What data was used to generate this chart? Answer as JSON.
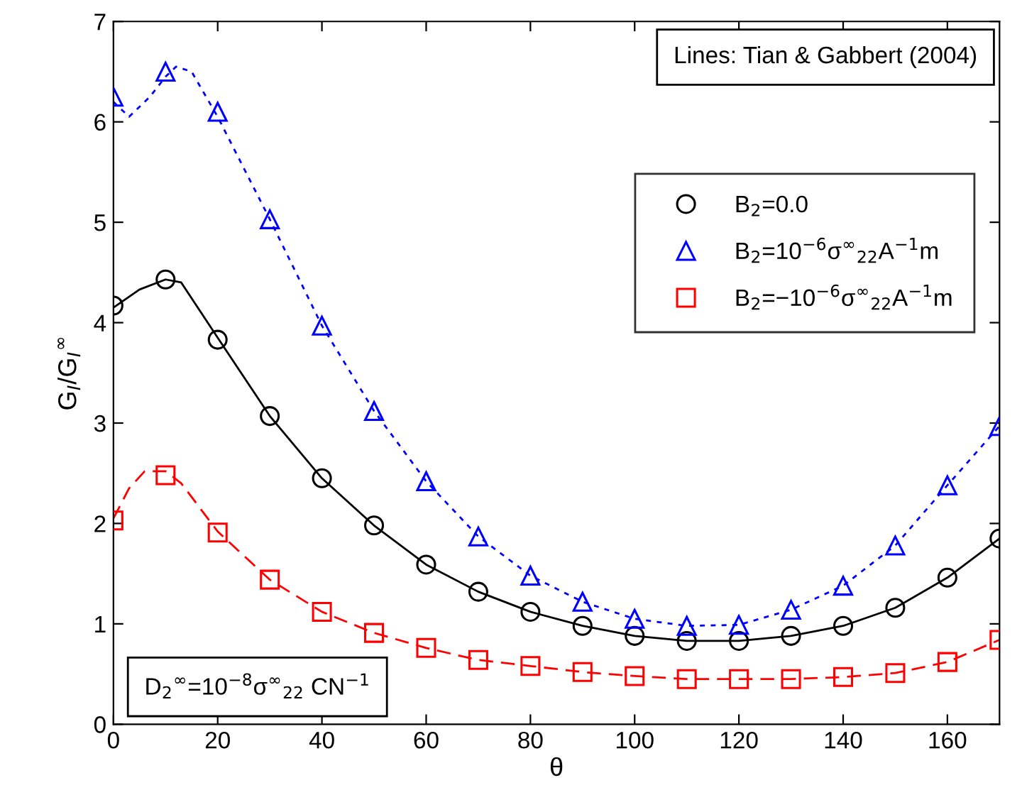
{
  "chart_data": {
    "type": "line",
    "xlabel": "θ",
    "ylabel": "G$_{I}$/G$_{I}$$^{∞}$",
    "x": [
      0,
      10,
      20,
      30,
      40,
      50,
      60,
      70,
      80,
      90,
      100,
      110,
      120,
      130,
      140,
      150,
      160,
      170
    ],
    "series": [
      {
        "name": "B$_{2}$=0.0",
        "type": "scatter",
        "marker": "circle",
        "color": "#000000",
        "values": [
          4.17,
          4.43,
          3.83,
          3.07,
          2.45,
          1.98,
          1.59,
          1.32,
          1.12,
          0.98,
          0.88,
          0.83,
          0.83,
          0.88,
          0.98,
          1.16,
          1.46,
          1.85
        ]
      },
      {
        "name": "B$_{2}$=10$^{−6}$σ$^{∞}$$_{22}$A$^{−1}$m",
        "type": "scatter",
        "marker": "triangle",
        "color": "#0000ff",
        "values": [
          6.25,
          6.5,
          6.1,
          5.03,
          3.97,
          3.12,
          2.42,
          1.87,
          1.48,
          1.22,
          1.05,
          0.98,
          0.99,
          1.14,
          1.38,
          1.78,
          2.38,
          2.97
        ]
      },
      {
        "name": "B$_{2}$=−10$^{−6}$σ$^{∞}$$_{22}$A$^{−1}$m",
        "type": "scatter",
        "marker": "square",
        "color": "#ff0000",
        "values": [
          2.03,
          2.48,
          1.91,
          1.44,
          1.12,
          0.91,
          0.76,
          0.64,
          0.58,
          0.52,
          0.48,
          0.45,
          0.45,
          0.45,
          0.47,
          0.51,
          0.62,
          0.84
        ]
      },
      {
        "line_style": "solid",
        "color": "#000000",
        "x": [
          0,
          5,
          10,
          13,
          20,
          30,
          40,
          50,
          60,
          70,
          80,
          90,
          100,
          110,
          120,
          130,
          140,
          150,
          160,
          170
        ],
        "values": [
          4.15,
          4.33,
          4.43,
          4.4,
          3.85,
          3.07,
          2.45,
          1.98,
          1.59,
          1.32,
          1.12,
          0.98,
          0.88,
          0.83,
          0.83,
          0.88,
          0.98,
          1.16,
          1.46,
          1.85
        ]
      },
      {
        "line_style": "dotted",
        "color": "#0000ff",
        "x": [
          0,
          3,
          7,
          10,
          12,
          15,
          20,
          30,
          40,
          50,
          60,
          70,
          80,
          90,
          100,
          110,
          120,
          130,
          140,
          150,
          160,
          170
        ],
        "values": [
          6.2,
          6.05,
          6.25,
          6.45,
          6.55,
          6.5,
          6.05,
          5.03,
          3.97,
          3.12,
          2.42,
          1.87,
          1.48,
          1.22,
          1.05,
          0.98,
          0.99,
          1.14,
          1.38,
          1.78,
          2.38,
          2.97
        ]
      },
      {
        "line_style": "dashed",
        "color": "#ff0000",
        "x": [
          0,
          3,
          6,
          10,
          13,
          20,
          30,
          40,
          50,
          60,
          70,
          80,
          90,
          100,
          110,
          120,
          130,
          140,
          150,
          160,
          170
        ],
        "values": [
          2.05,
          2.35,
          2.52,
          2.52,
          2.4,
          1.92,
          1.44,
          1.12,
          0.91,
          0.76,
          0.64,
          0.58,
          0.52,
          0.48,
          0.45,
          0.45,
          0.45,
          0.47,
          0.51,
          0.62,
          0.84
        ]
      }
    ],
    "xlim": [
      0,
      170
    ],
    "xticks": [
      0,
      20,
      40,
      60,
      80,
      100,
      120,
      140,
      160
    ],
    "ylim": [
      0,
      7
    ],
    "yticks": [
      0,
      1,
      2,
      3,
      4,
      5,
      6,
      7
    ],
    "grid": false,
    "legend": "top right",
    "annotations": [
      "Lines: Tian & Gabbert (2004)",
      "D$_{2}$$^{∞}$=10$^{−8}$σ$^{∞}$$_{22}$ CN$^{−1}$"
    ]
  }
}
